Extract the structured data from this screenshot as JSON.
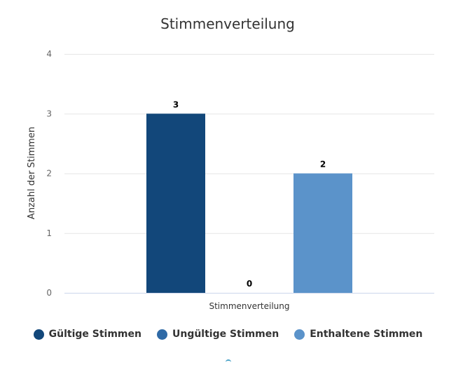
{
  "chart_data": {
    "type": "bar",
    "title": "Stimmenverteilung",
    "xlabel": "Stimmenverteilung",
    "ylabel": "Anzahl der Stimmen",
    "categories": [
      "Stimmenverteilung"
    ],
    "ylim": [
      0,
      4
    ],
    "yticks": [
      "0",
      "1",
      "2",
      "3",
      "4"
    ],
    "grid": true,
    "legend_position": "bottom",
    "series": [
      {
        "name": "Gültige Stimmen",
        "values": [
          3
        ],
        "label": "3",
        "color": "#12477a"
      },
      {
        "name": "Ungültige Stimmen",
        "values": [
          0
        ],
        "label": "0",
        "color": "#2f6aa6"
      },
      {
        "name": "Enthaltene Stimmen",
        "values": [
          2
        ],
        "label": "2",
        "color": "#5b93ca"
      }
    ]
  }
}
